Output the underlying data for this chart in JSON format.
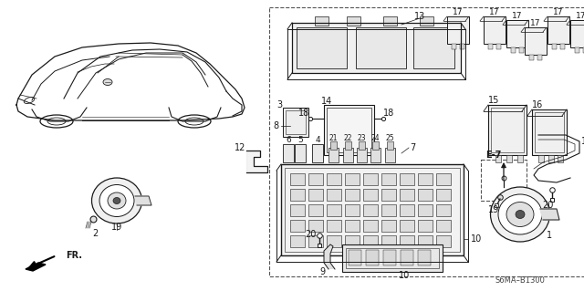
{
  "background_color": "#ffffff",
  "fig_width": 6.4,
  "fig_height": 3.19,
  "dpi": 100,
  "line_color": "#1a1a1a",
  "label_fontsize": 7.0,
  "watermark": "S6MA–B1300"
}
